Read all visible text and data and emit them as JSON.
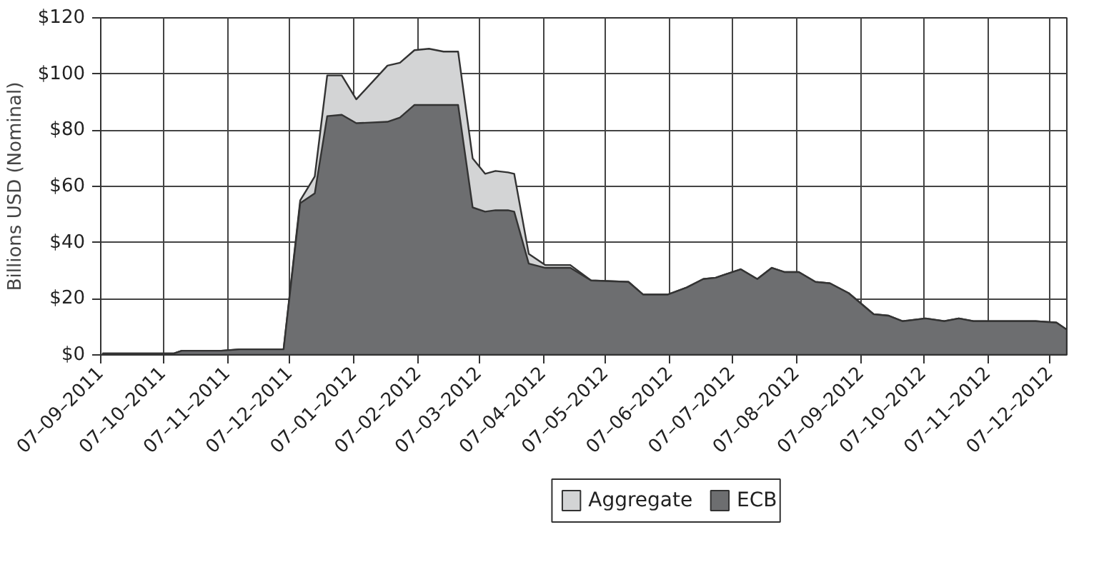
{
  "chart_data": {
    "type": "area",
    "ylabel": "Billions USD (Nominal)",
    "x": [
      "2011-09-08",
      "2011-10-12",
      "2011-10-16",
      "2011-11-04",
      "2011-11-13",
      "2011-12-04",
      "2011-12-12",
      "2011-12-19",
      "2011-12-25",
      "2012-01-01",
      "2012-01-08",
      "2012-01-23",
      "2012-01-29",
      "2012-02-05",
      "2012-02-12",
      "2012-02-19",
      "2012-02-26",
      "2012-03-04",
      "2012-03-10",
      "2012-03-15",
      "2012-03-21",
      "2012-03-24",
      "2012-03-31",
      "2012-04-08",
      "2012-04-20",
      "2012-04-30",
      "2012-05-18",
      "2012-05-25",
      "2012-06-06",
      "2012-06-15",
      "2012-06-23",
      "2012-06-29",
      "2012-07-11",
      "2012-07-19",
      "2012-07-26",
      "2012-08-01",
      "2012-08-08",
      "2012-08-16",
      "2012-08-23",
      "2012-09-01",
      "2012-09-13",
      "2012-09-20",
      "2012-09-27",
      "2012-10-08",
      "2012-10-17",
      "2012-10-24",
      "2012-10-31",
      "2012-11-30",
      "2012-12-10",
      "2012-12-15"
    ],
    "series": [
      {
        "name": "Aggregate",
        "color": "#d3d4d5",
        "values": [
          0.5,
          0.5,
          1.5,
          1.5,
          2,
          2,
          55,
          63.5,
          99.5,
          99.5,
          91,
          103,
          104,
          108.5,
          109,
          108,
          108,
          70,
          64.5,
          65.5,
          65,
          64.5,
          36,
          32,
          32,
          26.5,
          26,
          21.5,
          21.5,
          24,
          27,
          27.5,
          30.5,
          27,
          31,
          29.5,
          29.5,
          26,
          25.5,
          22,
          14.5,
          14,
          12,
          13,
          12,
          13,
          12,
          12,
          11.5,
          9
        ]
      },
      {
        "name": "ECB",
        "color": "#6d6e70",
        "values": [
          0.5,
          0.5,
          1.5,
          1.5,
          2,
          2,
          54,
          57.5,
          85,
          85.5,
          82.5,
          83,
          84.5,
          89,
          89,
          89,
          89,
          52.5,
          51,
          51.5,
          51.5,
          51,
          32.5,
          31,
          31,
          26.5,
          26,
          21.5,
          21.5,
          24,
          27,
          27.5,
          30.5,
          27,
          31,
          29.5,
          29.5,
          26,
          25.5,
          22,
          14.5,
          14,
          12,
          13,
          12,
          13,
          12,
          12,
          11.5,
          9
        ]
      }
    ],
    "xlim": [
      "2011-09-07",
      "2012-12-15"
    ],
    "xticks": [
      {
        "value": "2011-09-07",
        "label": "07–09–2011"
      },
      {
        "value": "2011-10-07",
        "label": "07–10–2011"
      },
      {
        "value": "2011-11-07",
        "label": "07–11–2011"
      },
      {
        "value": "2011-12-07",
        "label": "07–12–2011"
      },
      {
        "value": "2012-01-07",
        "label": "07–01–2012"
      },
      {
        "value": "2012-02-07",
        "label": "07–02–2012"
      },
      {
        "value": "2012-03-07",
        "label": "07–03–2012"
      },
      {
        "value": "2012-04-07",
        "label": "07–04–2012"
      },
      {
        "value": "2012-05-07",
        "label": "07–05–2012"
      },
      {
        "value": "2012-06-07",
        "label": "07–06–2012"
      },
      {
        "value": "2012-07-07",
        "label": "07–07–2012"
      },
      {
        "value": "2012-08-07",
        "label": "07–08–2012"
      },
      {
        "value": "2012-09-07",
        "label": "07–09–2012"
      },
      {
        "value": "2012-10-07",
        "label": "07–10–2012"
      },
      {
        "value": "2012-11-07",
        "label": "07–11–2012"
      },
      {
        "value": "2012-12-07",
        "label": "07–12–2012"
      }
    ],
    "ylim": [
      0,
      120
    ],
    "yticks": [
      {
        "value": 0,
        "label": "$0"
      },
      {
        "value": 20,
        "label": "$20"
      },
      {
        "value": 40,
        "label": "$40"
      },
      {
        "value": 60,
        "label": "$60"
      },
      {
        "value": 80,
        "label": "$80"
      },
      {
        "value": 100,
        "label": "$100"
      },
      {
        "value": 120,
        "label": "$120"
      }
    ],
    "grid": true,
    "legend": "bottom"
  }
}
